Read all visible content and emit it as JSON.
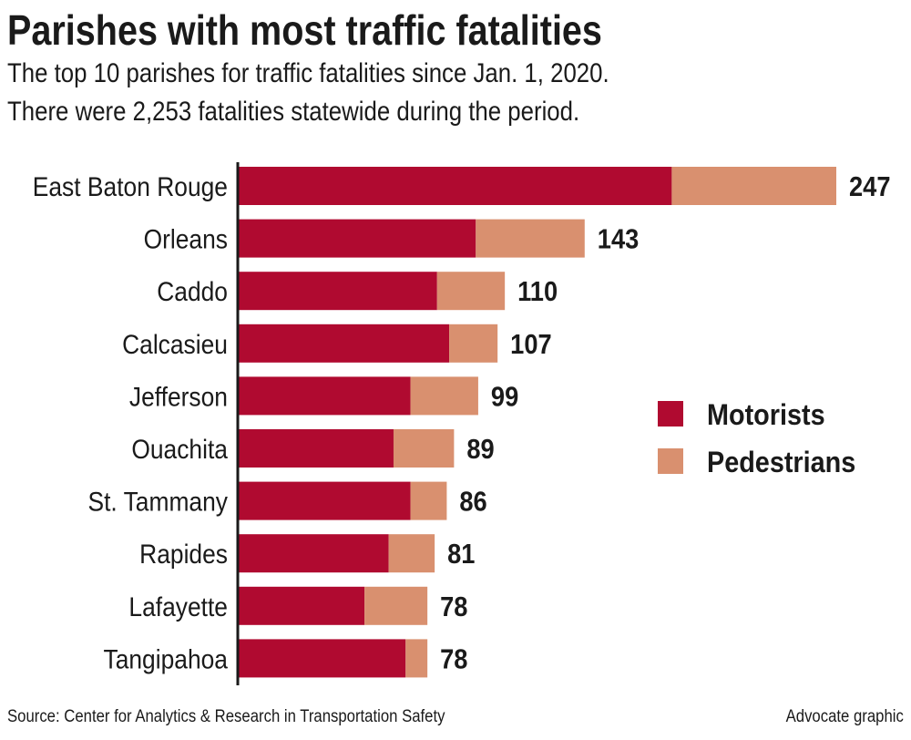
{
  "chart_data": {
    "type": "bar",
    "orientation": "horizontal",
    "stacked": true,
    "title": "Parishes with most traffic fatalities",
    "subtitle": [
      "The top 10 parishes for traffic fatalities since Jan. 1, 2020.",
      "There were 2,253 fatalities statewide during the period."
    ],
    "categories": [
      "East Baton Rouge",
      "Orleans",
      "Caddo",
      "Calcasieu",
      "Jefferson",
      "Ouachita",
      "St. Tammany",
      "Rapides",
      "Lafayette",
      "Tangipahoa"
    ],
    "series": [
      {
        "name": "Motorists",
        "color": "#b00a30",
        "values": [
          179,
          98,
          82,
          87,
          71,
          64,
          71,
          62,
          52,
          69
        ]
      },
      {
        "name": "Pedestrians",
        "color": "#d9906f",
        "values": [
          68,
          45,
          28,
          20,
          28,
          25,
          15,
          19,
          26,
          9
        ]
      }
    ],
    "totals": [
      247,
      143,
      110,
      107,
      99,
      89,
      86,
      81,
      78,
      78
    ],
    "xlim": [
      0,
      247
    ],
    "grid": false,
    "legend_position": "right"
  },
  "footer": {
    "source": "Source: Center for Analytics & Research in Transportation Safety",
    "credit": "Advocate graphic"
  }
}
